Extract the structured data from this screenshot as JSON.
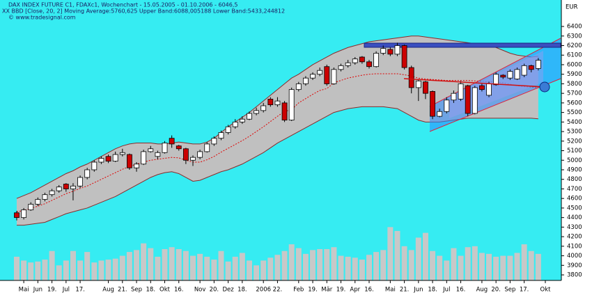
{
  "chart_data": {
    "type": "candlestick",
    "title": "DAX INDEX FUTURE C1, FDAXc1, Wochenchart - 15.05.2005 - 01.10.2006 - 6046,5",
    "subtitle": "XX BBD [Close, 20, 2] Moving Average:5760,625 Upper Band:6088,005188 Lower Band:5433,244812",
    "source": "© www.tradesignal.com",
    "y_axis_label": "EUR",
    "background": "#36ecf2",
    "up_color": "#ffffff",
    "down_color": "#cc0000",
    "band_fill": "#c0c0c0",
    "band_line_color": "#8b2a2a",
    "middle_color": "#e00000",
    "volume_color": "#c8c8c8",
    "grid": false,
    "ylim": [
      3742,
      6677
    ],
    "yticks": [
      3800,
      3900,
      4000,
      4100,
      4200,
      4300,
      4400,
      4500,
      4600,
      4700,
      4800,
      4900,
      5000,
      5100,
      5200,
      5300,
      5400,
      5500,
      5600,
      5700,
      5800,
      5900,
      6000,
      6100,
      6200,
      6300,
      6400
    ],
    "categories": [
      null,
      "Mai",
      null,
      "Jun",
      null,
      "19.",
      null,
      "Jul",
      null,
      "17.",
      null,
      null,
      null,
      "Aug",
      null,
      "21.",
      null,
      "Sep",
      null,
      "18.",
      null,
      "Okt",
      null,
      "16.",
      null,
      null,
      "Nov",
      null,
      "20.",
      null,
      "Dez",
      null,
      "18.",
      null,
      null,
      "2006",
      null,
      "22.",
      null,
      null,
      "Feb",
      null,
      "19.",
      null,
      "Mär",
      null,
      "19.",
      null,
      "Apr",
      null,
      "16.",
      null,
      null,
      "Mai",
      null,
      "21.",
      null,
      "Jun",
      null,
      "18.",
      null,
      "Jul",
      null,
      "16.",
      null,
      null,
      "Aug",
      null,
      "20.",
      null,
      "Sep",
      null,
      "17.",
      null,
      null,
      "Okt"
    ],
    "open": [
      4450,
      4400,
      4480,
      4540,
      4590,
      4640,
      4680,
      4750,
      4700,
      4730,
      4820,
      4900,
      4980,
      5040,
      4990,
      5060,
      5060,
      4920,
      4960,
      5090,
      5040,
      5080,
      5230,
      5150,
      5120,
      5000,
      5030,
      5090,
      5170,
      5230,
      5290,
      5350,
      5400,
      5430,
      5490,
      5520,
      5640,
      5580,
      5600,
      5420,
      5740,
      5800,
      5860,
      5900,
      5980,
      5800,
      5950,
      5990,
      6020,
      6080,
      6030,
      5980,
      6120,
      6160,
      6110,
      6200,
      5970,
      5760,
      5820,
      5720,
      5460,
      5510,
      5630,
      5640,
      5780,
      5490,
      5780,
      5680,
      5790,
      5890,
      5860,
      5850,
      5890,
      5990,
      5960,
      null
    ],
    "high": [
      4470,
      4500,
      4560,
      4610,
      4660,
      4700,
      4740,
      4760,
      4760,
      4840,
      4920,
      5000,
      5040,
      5060,
      5090,
      5120,
      5070,
      4980,
      5110,
      5150,
      5100,
      5200,
      5260,
      5160,
      5130,
      5050,
      5110,
      5190,
      5250,
      5310,
      5370,
      5430,
      5460,
      5510,
      5550,
      5600,
      5660,
      5660,
      5620,
      5760,
      5820,
      5880,
      5920,
      5970,
      6000,
      5970,
      6010,
      6050,
      6080,
      6090,
      6050,
      6140,
      6200,
      6180,
      6230,
      6210,
      5990,
      5850,
      5830,
      5730,
      5540,
      5660,
      5730,
      5830,
      5790,
      5780,
      5800,
      5820,
      5920,
      5900,
      5950,
      5970,
      6010,
      6000,
      6070,
      null
    ],
    "low": [
      4370,
      4380,
      4470,
      4520,
      4570,
      4620,
      4660,
      4670,
      4580,
      4710,
      4800,
      4880,
      4960,
      4970,
      4980,
      5040,
      4900,
      4880,
      4950,
      5080,
      5010,
      5070,
      5130,
      5100,
      4960,
      4940,
      5010,
      5080,
      5150,
      5210,
      5270,
      5330,
      5380,
      5420,
      5470,
      5500,
      5560,
      5560,
      5400,
      5410,
      5720,
      5780,
      5840,
      5880,
      5780,
      5790,
      5930,
      5970,
      6000,
      6010,
      5960,
      5970,
      6100,
      6090,
      6090,
      5950,
      5700,
      5620,
      5640,
      5430,
      5450,
      5490,
      5600,
      5620,
      5460,
      5480,
      5720,
      5660,
      5780,
      5850,
      5840,
      5840,
      5870,
      5920,
      5940,
      null
    ],
    "close": [
      4400,
      4480,
      4540,
      4590,
      4640,
      4680,
      4720,
      4700,
      4730,
      4820,
      4900,
      4980,
      5020,
      4990,
      5060,
      5080,
      4920,
      4960,
      5090,
      5120,
      5080,
      5180,
      5170,
      5120,
      5000,
      5030,
      5090,
      5170,
      5230,
      5290,
      5350,
      5400,
      5430,
      5490,
      5520,
      5570,
      5580,
      5620,
      5420,
      5740,
      5800,
      5860,
      5900,
      5940,
      5800,
      5950,
      5990,
      6020,
      6060,
      6030,
      5980,
      6120,
      6170,
      6110,
      6200,
      5970,
      5760,
      5830,
      5700,
      5460,
      5510,
      5630,
      5700,
      5800,
      5490,
      5760,
      5740,
      5800,
      5900,
      5870,
      5930,
      5950,
      5990,
      5950,
      6046.5,
      null
    ],
    "upper_band": [
      4600,
      4630,
      4660,
      4700,
      4740,
      4780,
      4820,
      4860,
      4890,
      4930,
      4960,
      5000,
      5040,
      5080,
      5120,
      5150,
      5170,
      5180,
      5180,
      5180,
      5170,
      5170,
      5180,
      5190,
      5180,
      5170,
      5170,
      5190,
      5230,
      5290,
      5350,
      5400,
      5450,
      5500,
      5560,
      5620,
      5680,
      5740,
      5800,
      5860,
      5900,
      5950,
      6000,
      6040,
      6080,
      6120,
      6150,
      6180,
      6200,
      6220,
      6240,
      6250,
      6260,
      6270,
      6280,
      6290,
      6300,
      6300,
      6290,
      6280,
      6270,
      6260,
      6250,
      6240,
      6230,
      6220,
      6210,
      6200,
      6180,
      6150,
      6120,
      6100,
      6090,
      6080,
      6088.005188,
      null
    ],
    "middle_band": [
      4460,
      4475,
      4495,
      4520,
      4545,
      4580,
      4615,
      4650,
      4675,
      4705,
      4730,
      4765,
      4800,
      4835,
      4870,
      4905,
      4935,
      4960,
      4980,
      5000,
      5010,
      5020,
      5030,
      5025,
      5000,
      4980,
      4980,
      5005,
      5040,
      5085,
      5125,
      5165,
      5205,
      5250,
      5300,
      5350,
      5405,
      5460,
      5510,
      5530,
      5600,
      5645,
      5690,
      5730,
      5750,
      5810,
      5835,
      5860,
      5875,
      5890,
      5900,
      5905,
      5905,
      5905,
      5905,
      5895,
      5880,
      5860,
      5850,
      5845,
      5840,
      5835,
      5835,
      5835,
      5835,
      5830,
      5825,
      5820,
      5820,
      5810,
      5795,
      5780,
      5770,
      5765,
      5760.625,
      null
    ],
    "lower_band": [
      4320,
      4320,
      4330,
      4340,
      4350,
      4380,
      4410,
      4440,
      4460,
      4480,
      4500,
      4530,
      4560,
      4590,
      4620,
      4660,
      4700,
      4740,
      4780,
      4820,
      4850,
      4870,
      4880,
      4860,
      4820,
      4780,
      4790,
      4820,
      4850,
      4880,
      4900,
      4930,
      4960,
      5000,
      5040,
      5080,
      5130,
      5180,
      5220,
      5260,
      5300,
      5340,
      5380,
      5420,
      5460,
      5500,
      5520,
      5540,
      5550,
      5560,
      5560,
      5560,
      5560,
      5550,
      5540,
      5500,
      5460,
      5420,
      5400,
      5400,
      5400,
      5410,
      5420,
      5430,
      5440,
      5440,
      5440,
      5440,
      5440,
      5440,
      5440,
      5440,
      5440,
      5440,
      5433.244812,
      null
    ],
    "volume": [
      3990,
      3950,
      3930,
      3940,
      3960,
      4050,
      3900,
      3950,
      4050,
      3950,
      4040,
      3930,
      3950,
      3960,
      3970,
      4000,
      4040,
      4060,
      4130,
      4080,
      3990,
      4070,
      4090,
      4070,
      4050,
      4000,
      4020,
      3990,
      3960,
      4050,
      3940,
      3990,
      4030,
      3950,
      3900,
      3950,
      3980,
      4010,
      4050,
      4120,
      4080,
      4020,
      4060,
      4070,
      4070,
      4090,
      4000,
      3990,
      3980,
      3960,
      4010,
      4040,
      4060,
      4300,
      4260,
      4100,
      4060,
      4190,
      4240,
      4050,
      4000,
      3950,
      4080,
      4000,
      4090,
      4100,
      4030,
      4020,
      3990,
      4000,
      4000,
      4030,
      4120,
      4050,
      4020,
      null
    ]
  }
}
